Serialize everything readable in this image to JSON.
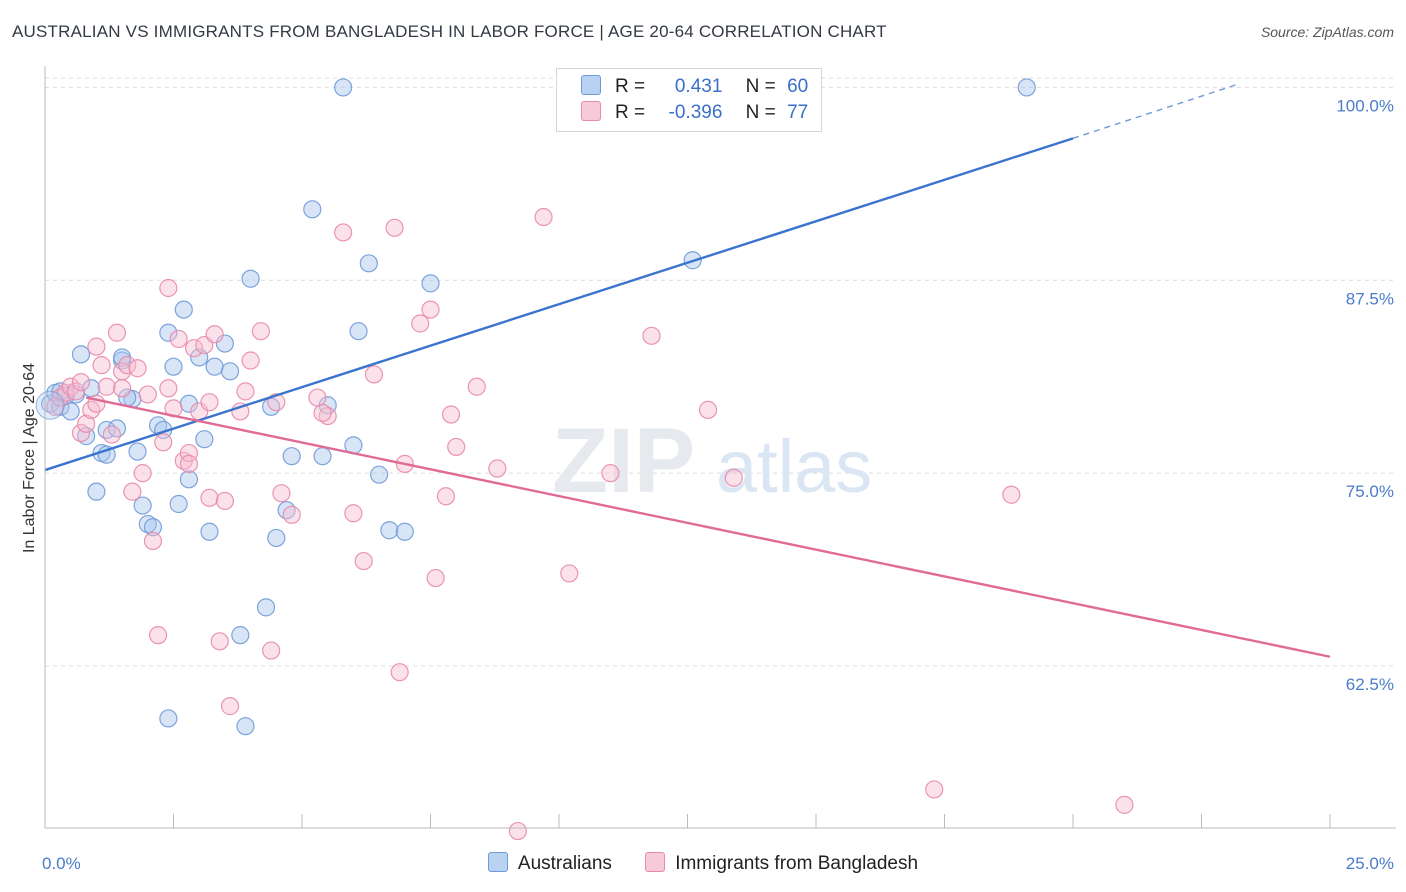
{
  "title": "AUSTRALIAN VS IMMIGRANTS FROM BANGLADESH IN LABOR FORCE | AGE 20-64 CORRELATION CHART",
  "source": "Source: ZipAtlas.com",
  "watermark": {
    "zip": "ZIP",
    "atlas": "atlas"
  },
  "legend": {
    "r_label": "R =",
    "n_label": "N =",
    "rows": [
      {
        "r": "0.431",
        "n": "60",
        "color": "#a9c6ee",
        "border": "#6f9ad8"
      },
      {
        "r": "-0.396",
        "n": "77",
        "color": "#f6bcd0",
        "border": "#e88aab"
      }
    ]
  },
  "bottom_legend": [
    "Australians",
    "Immigrants from Bangladesh"
  ],
  "chart_data": {
    "type": "scatter",
    "xlabel": "",
    "ylabel": "In Labor Force | Age 20-64",
    "xlim": [
      0,
      25
    ],
    "ylim": [
      52,
      101
    ],
    "x_tick_labels": [
      "0.0%",
      "25.0%"
    ],
    "y_ticks": [
      62.5,
      75.0,
      87.5,
      100.0
    ],
    "y_tick_labels": [
      "62.5%",
      "75.0%",
      "87.5%",
      "100.0%"
    ],
    "grid": true,
    "legend_position": "top-center",
    "series": [
      {
        "name": "Australians",
        "color": "#6f9ad8",
        "fill": "#a9c6ee",
        "trend": {
          "x": [
            0,
            20
          ],
          "y": [
            75.2,
            96.7
          ],
          "dash_to": [
            23.2,
            100.2
          ]
        },
        "points": [
          [
            0.1,
            79.5
          ],
          [
            0.2,
            80.2
          ],
          [
            0.3,
            79.3
          ],
          [
            0.4,
            80.0
          ],
          [
            0.5,
            79.0
          ],
          [
            0.6,
            80.1
          ],
          [
            0.7,
            82.7
          ],
          [
            0.8,
            77.4
          ],
          [
            0.9,
            80.5
          ],
          [
            1.0,
            73.8
          ],
          [
            1.1,
            76.3
          ],
          [
            1.2,
            77.8
          ],
          [
            1.2,
            76.2
          ],
          [
            1.4,
            77.9
          ],
          [
            1.5,
            82.3
          ],
          [
            1.7,
            79.8
          ],
          [
            1.8,
            76.4
          ],
          [
            1.9,
            72.9
          ],
          [
            2.0,
            71.7
          ],
          [
            2.1,
            71.5
          ],
          [
            2.2,
            78.1
          ],
          [
            2.3,
            77.8
          ],
          [
            2.4,
            84.1
          ],
          [
            2.5,
            81.9
          ],
          [
            2.6,
            73.0
          ],
          [
            2.7,
            85.6
          ],
          [
            2.8,
            74.6
          ],
          [
            3.0,
            82.5
          ],
          [
            3.1,
            77.2
          ],
          [
            3.2,
            71.2
          ],
          [
            3.3,
            81.9
          ],
          [
            3.5,
            83.4
          ],
          [
            3.6,
            81.6
          ],
          [
            3.8,
            64.5
          ],
          [
            3.9,
            58.6
          ],
          [
            4.0,
            87.6
          ],
          [
            4.3,
            66.3
          ],
          [
            4.4,
            79.3
          ],
          [
            4.5,
            70.8
          ],
          [
            4.7,
            72.6
          ],
          [
            4.8,
            76.1
          ],
          [
            5.2,
            92.1
          ],
          [
            5.4,
            76.1
          ],
          [
            5.5,
            79.4
          ],
          [
            5.8,
            100.0
          ],
          [
            6.0,
            76.8
          ],
          [
            6.1,
            84.2
          ],
          [
            6.3,
            88.6
          ],
          [
            6.5,
            74.9
          ],
          [
            6.7,
            71.3
          ],
          [
            7.0,
            71.2
          ],
          [
            7.5,
            87.3
          ],
          [
            12.5,
            100.0
          ],
          [
            12.6,
            88.8
          ],
          [
            19.1,
            100.0
          ],
          [
            2.4,
            59.1
          ],
          [
            0.3,
            80.3
          ],
          [
            1.5,
            82.5
          ],
          [
            1.6,
            79.9
          ],
          [
            2.8,
            79.5
          ]
        ]
      },
      {
        "name": "Immigrants from Bangladesh",
        "color": "#e88aab",
        "fill": "#f6bcd0",
        "trend": {
          "x": [
            0.8,
            25
          ],
          "y": [
            79.9,
            63.1
          ]
        },
        "points": [
          [
            0.2,
            79.3
          ],
          [
            0.3,
            79.9
          ],
          [
            0.4,
            80.2
          ],
          [
            0.5,
            80.6
          ],
          [
            0.6,
            80.3
          ],
          [
            0.7,
            77.6
          ],
          [
            0.8,
            78.2
          ],
          [
            0.9,
            79.1
          ],
          [
            1.0,
            83.2
          ],
          [
            1.1,
            82.0
          ],
          [
            1.2,
            80.6
          ],
          [
            1.3,
            77.5
          ],
          [
            1.4,
            84.1
          ],
          [
            1.5,
            81.6
          ],
          [
            1.6,
            82.0
          ],
          [
            1.7,
            73.8
          ],
          [
            1.8,
            81.8
          ],
          [
            1.9,
            75.0
          ],
          [
            2.0,
            80.1
          ],
          [
            2.1,
            70.6
          ],
          [
            2.2,
            64.5
          ],
          [
            2.3,
            77.0
          ],
          [
            2.4,
            87.0
          ],
          [
            2.5,
            79.2
          ],
          [
            2.6,
            83.7
          ],
          [
            2.7,
            75.8
          ],
          [
            2.8,
            76.3
          ],
          [
            2.9,
            83.1
          ],
          [
            3.0,
            79.0
          ],
          [
            3.1,
            83.3
          ],
          [
            3.2,
            73.4
          ],
          [
            3.3,
            84.0
          ],
          [
            3.4,
            64.1
          ],
          [
            3.5,
            73.2
          ],
          [
            3.6,
            59.9
          ],
          [
            3.8,
            79.0
          ],
          [
            3.9,
            80.3
          ],
          [
            4.0,
            82.3
          ],
          [
            4.2,
            84.2
          ],
          [
            4.4,
            63.5
          ],
          [
            4.5,
            79.6
          ],
          [
            4.6,
            73.7
          ],
          [
            4.8,
            72.3
          ],
          [
            5.3,
            79.9
          ],
          [
            5.5,
            78.7
          ],
          [
            5.8,
            90.6
          ],
          [
            6.0,
            72.4
          ],
          [
            6.2,
            69.3
          ],
          [
            6.4,
            81.4
          ],
          [
            6.8,
            90.9
          ],
          [
            6.9,
            62.1
          ],
          [
            7.0,
            75.6
          ],
          [
            7.3,
            84.7
          ],
          [
            7.5,
            85.6
          ],
          [
            7.6,
            68.2
          ],
          [
            7.8,
            73.5
          ],
          [
            7.9,
            78.8
          ],
          [
            8.0,
            76.7
          ],
          [
            8.4,
            80.6
          ],
          [
            8.8,
            75.3
          ],
          [
            9.2,
            51.8
          ],
          [
            9.7,
            91.6
          ],
          [
            10.2,
            68.5
          ],
          [
            11.0,
            75.0
          ],
          [
            11.8,
            83.9
          ],
          [
            12.9,
            79.1
          ],
          [
            13.4,
            74.7
          ],
          [
            17.3,
            54.5
          ],
          [
            18.8,
            73.6
          ],
          [
            21.0,
            53.5
          ],
          [
            1.0,
            79.5
          ],
          [
            2.8,
            75.6
          ],
          [
            5.4,
            78.9
          ],
          [
            3.2,
            79.6
          ],
          [
            1.5,
            80.5
          ],
          [
            2.4,
            80.5
          ],
          [
            0.7,
            80.9
          ]
        ]
      }
    ]
  }
}
